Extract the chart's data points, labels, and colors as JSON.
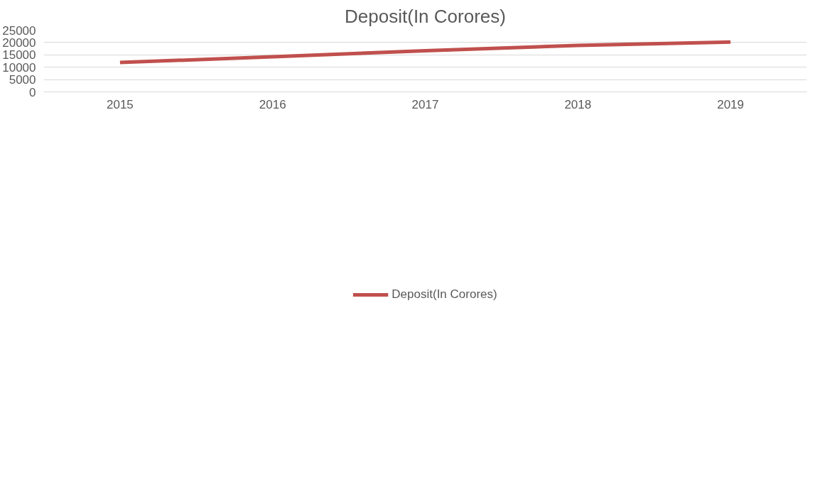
{
  "chart_data": {
    "type": "line",
    "title": "Deposit(In Corores)",
    "categories": [
      "2015",
      "2016",
      "2017",
      "2018",
      "2019"
    ],
    "series": [
      {
        "name": "Deposit(In Corores)",
        "color": "#c0504d",
        "values": [
          11900,
          14200,
          16700,
          18800,
          20200
        ]
      }
    ],
    "ylim": [
      0,
      25000
    ],
    "yticks": [
      0,
      5000,
      10000,
      15000,
      20000,
      25000
    ],
    "grid": "y",
    "legend": "bottom",
    "marker": "none",
    "line_style": "solid"
  }
}
